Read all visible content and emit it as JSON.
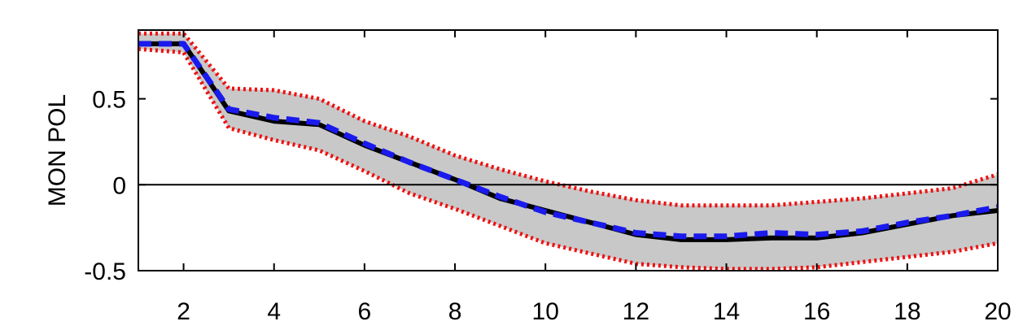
{
  "chart_data": {
    "type": "line",
    "title": "",
    "xlabel": "",
    "ylabel": "MON POL",
    "xlim": [
      1,
      20
    ],
    "ylim": [
      -0.5,
      0.9
    ],
    "grid": false,
    "x_ticks": [
      2,
      4,
      6,
      8,
      10,
      12,
      14,
      16,
      18,
      20
    ],
    "x_tick_labels": [
      "2",
      "4",
      "6",
      "8",
      "10",
      "12",
      "14",
      "16",
      "18",
      "20"
    ],
    "y_ticks": [
      -0.5,
      0,
      0.5
    ],
    "y_tick_labels": [
      "-0.5",
      "0",
      "0.5"
    ],
    "zero_line": 0,
    "x": [
      1,
      2,
      3,
      4,
      5,
      6,
      7,
      8,
      9,
      10,
      11,
      12,
      13,
      14,
      15,
      16,
      17,
      18,
      19,
      20
    ],
    "band": {
      "lower": [
        0.79,
        0.77,
        0.33,
        0.26,
        0.2,
        0.08,
        -0.05,
        -0.14,
        -0.24,
        -0.34,
        -0.4,
        -0.46,
        -0.48,
        -0.49,
        -0.49,
        -0.48,
        -0.45,
        -0.42,
        -0.39,
        -0.34
      ],
      "upper": [
        0.88,
        0.88,
        0.56,
        0.55,
        0.5,
        0.37,
        0.28,
        0.17,
        0.09,
        0.02,
        -0.04,
        -0.09,
        -0.12,
        -0.12,
        -0.12,
        -0.1,
        -0.08,
        -0.05,
        -0.02,
        0.06
      ],
      "fill_color": "#c8c8c8",
      "edge_color": "#ee1111"
    },
    "series": [
      {
        "style": "solid",
        "color": "#000000",
        "values": [
          0.82,
          0.82,
          0.43,
          0.37,
          0.35,
          0.23,
          0.13,
          0.03,
          -0.08,
          -0.15,
          -0.22,
          -0.29,
          -0.32,
          -0.32,
          -0.31,
          -0.31,
          -0.28,
          -0.23,
          -0.18,
          -0.15
        ]
      },
      {
        "style": "dashed",
        "color": "#1a1aee",
        "values": [
          0.82,
          0.82,
          0.44,
          0.39,
          0.36,
          0.24,
          0.13,
          0.03,
          -0.07,
          -0.16,
          -0.22,
          -0.28,
          -0.3,
          -0.3,
          -0.28,
          -0.29,
          -0.27,
          -0.22,
          -0.18,
          -0.13
        ]
      }
    ]
  }
}
